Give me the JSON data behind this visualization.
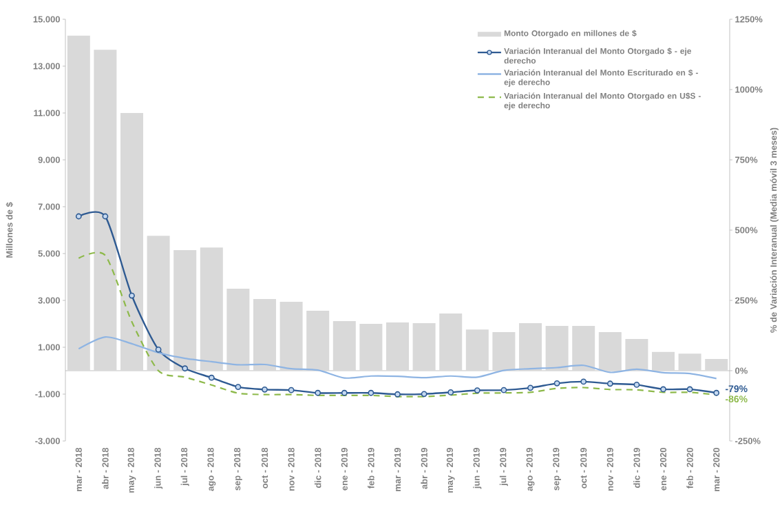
{
  "chart_data": {
    "type": "bar",
    "categories": [
      "mar - 2018",
      "abr - 2018",
      "may - 2018",
      "jun - 2018",
      "jul - 2018",
      "ago - 2018",
      "sep - 2018",
      "oct - 2018",
      "nov - 2018",
      "dic - 2018",
      "ene - 2019",
      "feb - 2019",
      "mar - 2019",
      "abr - 2019",
      "may - 2019",
      "jun - 2019",
      "jul - 2019",
      "ago - 2019",
      "sep - 2019",
      "oct - 2019",
      "nov - 2019",
      "dic - 2019",
      "ene - 2020",
      "feb - 2020",
      "mar - 2020"
    ],
    "series": [
      {
        "name": "Monto Otorgado en millones de $",
        "color": "#d9d9d9",
        "values": [
          14300,
          13700,
          11000,
          5760,
          5150,
          5260,
          3500,
          3060,
          2940,
          2560,
          2120,
          2000,
          2060,
          2030,
          2440,
          1760,
          1650,
          2030,
          1910,
          1910,
          1650,
          1350,
          800,
          730,
          500
        ]
      },
      {
        "name": "Variación Interanual del Monto Otorgado $ - eje derecho",
        "type": "line",
        "axis": "y2",
        "color": "#2e5a92",
        "marker": "circle",
        "line_style": "solid",
        "values": [
          549,
          549,
          267,
          75,
          8,
          -25,
          -58,
          -67,
          -69,
          -79,
          -79,
          -79,
          -84,
          -83,
          -77,
          -70,
          -69,
          -61,
          -45,
          -39,
          -46,
          -50,
          -66,
          -66,
          -79
        ]
      },
      {
        "name": "Variación Interanual del Monto Escriturado en $ - eje derecho",
        "type": "line",
        "axis": "y2",
        "color": "#8eb4e3",
        "marker": "none",
        "line_style": "solid",
        "values": [
          78,
          120,
          96,
          64,
          44,
          32,
          21,
          22,
          7,
          2,
          -26,
          -19,
          -20,
          -25,
          -19,
          -23,
          1,
          7,
          11,
          19,
          -6,
          5,
          -7,
          -10,
          -28
        ]
      },
      {
        "name": "Variación Interanual del Monto Otorgado en U$S - eje derecho",
        "type": "line",
        "axis": "y2",
        "color": "#8db94a",
        "marker": "none",
        "line_style": "dashed",
        "values": [
          400,
          410,
          174,
          0,
          -23,
          -51,
          -80,
          -85,
          -85,
          -88,
          -88,
          -88,
          -92,
          -92,
          -87,
          -80,
          -79,
          -77,
          -63,
          -60,
          -67,
          -68,
          -77,
          -77,
          -86
        ]
      }
    ],
    "ylabel": "Millones de $",
    "y2label": "% de Variación Interanual (Media móvil 3 meses)",
    "ylim": [
      -3000,
      15000
    ],
    "yticks": [
      {
        "value": -3000,
        "label": "-3.000"
      },
      {
        "value": -1000,
        "label": "-1.000"
      },
      {
        "value": 1000,
        "label": "1.000"
      },
      {
        "value": 3000,
        "label": "3.000"
      },
      {
        "value": 5000,
        "label": "5.000"
      },
      {
        "value": 7000,
        "label": "7.000"
      },
      {
        "value": 9000,
        "label": "9.000"
      },
      {
        "value": 11000,
        "label": "11.000"
      },
      {
        "value": 13000,
        "label": "13.000"
      },
      {
        "value": 15000,
        "label": "15.000"
      }
    ],
    "y2lim": [
      -250,
      1250
    ],
    "y2ticks": [
      {
        "value": -250,
        "label": "-250%"
      },
      {
        "value": 0,
        "label": "0%"
      },
      {
        "value": 250,
        "label": "250%"
      },
      {
        "value": 500,
        "label": "500%"
      },
      {
        "value": 750,
        "label": "750%"
      },
      {
        "value": 1000,
        "label": "1000%"
      },
      {
        "value": 1250,
        "label": "1250%"
      }
    ],
    "annotations": [
      {
        "text": "-79%",
        "x": "mar - 2020",
        "y": -79
      },
      {
        "text": "-86%",
        "x": "mar - 2020",
        "y": -86
      }
    ],
    "ref_lines": [
      {
        "axis": "y",
        "value": 0,
        "color": "#b2b2b2"
      }
    ],
    "legend": "top right",
    "grid": false
  }
}
